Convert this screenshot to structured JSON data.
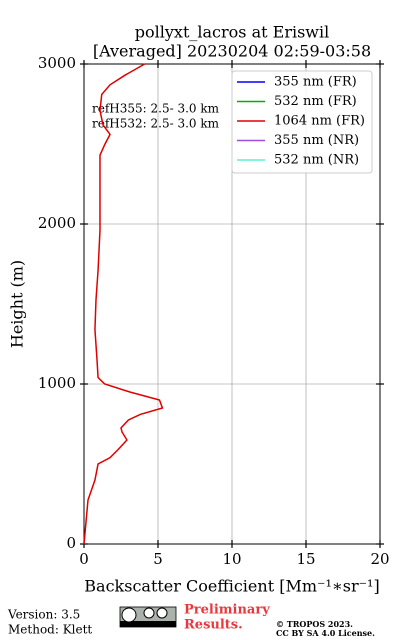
{
  "chart_data": {
    "type": "line",
    "title": [
      "pollyxt_lacros at Eriswil",
      "[Averaged] 20230204 02:59-03:58"
    ],
    "xlabel": "Backscatter Coefficient [Mm⁻¹∗sr⁻¹]",
    "ylabel": "Height (m)",
    "annotations": [
      "refH355:  2.5- 3.0 km",
      "refH532:  2.5- 3.0 km"
    ],
    "y": [
      0,
      275,
      400,
      500,
      540,
      590,
      650,
      700,
      725,
      775,
      810,
      850,
      900,
      950,
      1000,
      1040,
      1150,
      1340,
      1525,
      1710,
      1960,
      2210,
      2430,
      2500,
      2560,
      2620,
      2710,
      2810,
      2870,
      2930,
      3000
    ],
    "series": [
      {
        "name": "355 nm (FR)",
        "color": "#0000ff",
        "values": [
          null,
          null,
          null,
          null,
          null,
          null,
          null,
          null,
          null,
          null,
          null,
          null,
          null,
          null,
          null,
          null,
          null,
          null,
          null,
          null,
          null,
          null,
          null,
          null,
          null,
          null,
          null,
          null,
          null,
          null,
          null
        ]
      },
      {
        "name": "532 nm (FR)",
        "color": "#00b000",
        "values": [
          null,
          null,
          null,
          null,
          null,
          null,
          null,
          null,
          null,
          null,
          null,
          null,
          null,
          null,
          null,
          null,
          null,
          null,
          null,
          null,
          null,
          null,
          null,
          null,
          null,
          null,
          null,
          null,
          null,
          null,
          null
        ]
      },
      {
        "name": "1064 nm (FR)",
        "color": "#e00000",
        "values": [
          0,
          0.27,
          0.74,
          0.95,
          1.76,
          2.3,
          2.9,
          2.57,
          2.5,
          3.0,
          3.8,
          5.3,
          5.1,
          3.1,
          1.4,
          0.95,
          0.88,
          0.74,
          0.81,
          0.95,
          1.08,
          1.08,
          1.08,
          1.42,
          1.76,
          1.28,
          1.08,
          1.2,
          1.76,
          2.77,
          4.1
        ]
      },
      {
        "name": "355 nm (NR)",
        "color": "#9b4fe0",
        "values": [
          null,
          null,
          null,
          null,
          null,
          null,
          null,
          null,
          null,
          null,
          null,
          null,
          null,
          null,
          null,
          null,
          null,
          null,
          null,
          null,
          null,
          null,
          null,
          null,
          null,
          null,
          null,
          null,
          null,
          null,
          null
        ]
      },
      {
        "name": "532 nm (NR)",
        "color": "#5ff0d0",
        "values": [
          null,
          null,
          null,
          null,
          null,
          null,
          null,
          null,
          null,
          null,
          null,
          null,
          null,
          null,
          null,
          null,
          null,
          null,
          null,
          null,
          null,
          null,
          null,
          null,
          null,
          null,
          null,
          null,
          null,
          null,
          null
        ]
      }
    ],
    "xlim": [
      0,
      20
    ],
    "xticks": [
      0,
      5,
      10,
      15,
      20
    ],
    "ylim": [
      0,
      3000
    ],
    "yticks": [
      0,
      1000,
      2000,
      3000
    ],
    "grid": true,
    "legend": "upper right"
  },
  "footer": {
    "version": "Version: 3.5",
    "method": "Method: Klett",
    "status": [
      "Preliminary",
      "Results."
    ],
    "copyright": "© TROPOS 2023.",
    "license": "CC BY SA 4.0 License."
  }
}
